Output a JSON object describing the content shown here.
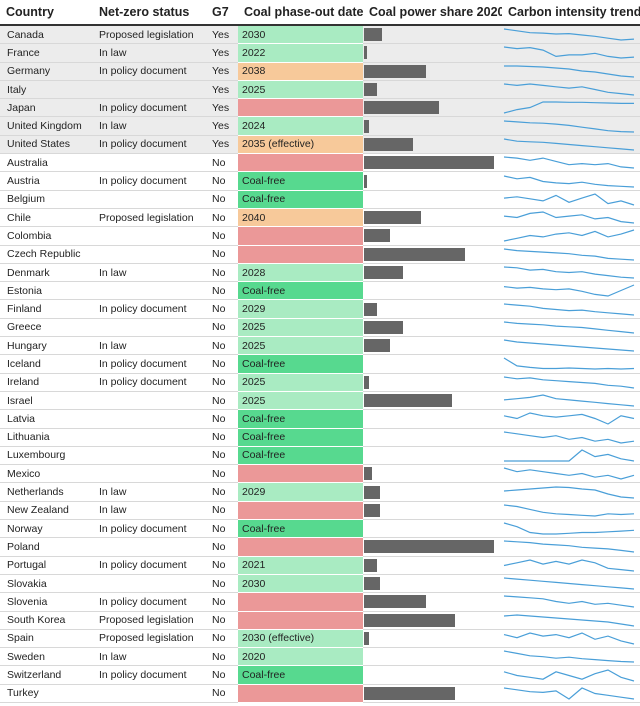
{
  "chart_data": {
    "type": "table",
    "columns": [
      "Country",
      "Net-zero status",
      "G7",
      "Coal phase-out date",
      "Coal power share 2020",
      "Carbon intensity trend"
    ],
    "colors": {
      "coal_free": "#57d98f",
      "phase_date": "#a9ebc2",
      "phase_date_late": "#f7c99a",
      "no_commitment": "#eb9898",
      "share_bar": "#666666",
      "trend_line": "#4a9fd8",
      "g7_row_background": "#ececec"
    },
    "share_max": 0.5,
    "rows": [
      {
        "country": "Canada",
        "status": "Proposed legislation",
        "g7": "Yes",
        "phase": "2030",
        "phase_class": "date",
        "share": 0.07,
        "trend": [
          520,
          500,
          480,
          475,
          465,
          470,
          455,
          440,
          420,
          400,
          410
        ]
      },
      {
        "country": "France",
        "status": "In law",
        "g7": "Yes",
        "phase": "2022",
        "phase_class": "date",
        "share": 0.01,
        "trend": [
          120,
          115,
          118,
          110,
          90,
          95,
          95,
          100,
          90,
          85,
          88
        ]
      },
      {
        "country": "Germany",
        "status": "In policy document",
        "g7": "Yes",
        "phase": "2038",
        "phase_class": "late",
        "share": 0.24,
        "trend": [
          530,
          530,
          525,
          520,
          510,
          500,
          480,
          470,
          450,
          430,
          420
        ]
      },
      {
        "country": "Italy",
        "status": "",
        "g7": "Yes",
        "phase": "2025",
        "phase_class": "date",
        "share": 0.05,
        "trend": [
          440,
          430,
          440,
          430,
          420,
          410,
          420,
          400,
          380,
          370,
          360
        ]
      },
      {
        "country": "Japan",
        "status": "In policy document",
        "g7": "Yes",
        "phase": "",
        "phase_class": "none",
        "share": 0.29,
        "trend": [
          400,
          450,
          480,
          560,
          560,
          555,
          555,
          550,
          545,
          540,
          540
        ]
      },
      {
        "country": "United Kingdom",
        "status": "In law",
        "g7": "Yes",
        "phase": "2024",
        "phase_class": "date",
        "share": 0.02,
        "trend": [
          560,
          540,
          520,
          510,
          490,
          460,
          420,
          380,
          340,
          320,
          310
        ]
      },
      {
        "country": "United States",
        "status": "In policy document",
        "g7": "Yes",
        "phase": "2035 (effective)",
        "phase_class": "late",
        "share": 0.19,
        "trend": [
          570,
          550,
          545,
          540,
          530,
          520,
          510,
          500,
          490,
          480,
          470
        ]
      },
      {
        "country": "Australia",
        "status": "",
        "g7": "No",
        "phase": "",
        "phase_class": "none",
        "share": 0.54,
        "trend": [
          830,
          820,
          800,
          820,
          790,
          760,
          770,
          760,
          770,
          740,
          730
        ]
      },
      {
        "country": "Austria",
        "status": "In policy document",
        "g7": "No",
        "phase": "Coal-free",
        "phase_class": "free",
        "share": 0.01,
        "trend": [
          200,
          180,
          190,
          160,
          150,
          145,
          155,
          140,
          130,
          125,
          120
        ]
      },
      {
        "country": "Belgium",
        "status": "",
        "g7": "No",
        "phase": "Coal-free",
        "phase_class": "free",
        "share": 0.0,
        "trend": [
          220,
          230,
          215,
          200,
          240,
          190,
          220,
          250,
          180,
          200,
          170
        ]
      },
      {
        "country": "Chile",
        "status": "Proposed legislation",
        "g7": "No",
        "phase": "2040",
        "phase_class": "late",
        "share": 0.22,
        "trend": [
          450,
          440,
          470,
          480,
          440,
          450,
          460,
          430,
          440,
          410,
          400
        ]
      },
      {
        "country": "Colombia",
        "status": "",
        "g7": "No",
        "phase": "",
        "phase_class": "none",
        "share": 0.1,
        "trend": [
          150,
          160,
          170,
          165,
          175,
          180,
          170,
          185,
          165,
          175,
          190
        ]
      },
      {
        "country": "Czech Republic",
        "status": "",
        "g7": "No",
        "phase": "",
        "phase_class": "none",
        "share": 0.39,
        "trend": [
          600,
          590,
          585,
          580,
          575,
          570,
          560,
          555,
          540,
          535,
          530
        ]
      },
      {
        "country": "Denmark",
        "status": "In law",
        "g7": "No",
        "phase": "2028",
        "phase_class": "date",
        "share": 0.15,
        "trend": [
          360,
          350,
          320,
          330,
          300,
          290,
          300,
          270,
          250,
          230,
          220
        ]
      },
      {
        "country": "Estonia",
        "status": "",
        "g7": "No",
        "phase": "Coal-free",
        "phase_class": "free",
        "share": 0.0,
        "trend": [
          900,
          880,
          890,
          870,
          860,
          870,
          840,
          800,
          780,
          850,
          920
        ]
      },
      {
        "country": "Finland",
        "status": "In policy document",
        "g7": "No",
        "phase": "2029",
        "phase_class": "date",
        "share": 0.05,
        "trend": [
          200,
          190,
          180,
          160,
          150,
          140,
          145,
          130,
          120,
          110,
          100
        ]
      },
      {
        "country": "Greece",
        "status": "",
        "g7": "No",
        "phase": "2025",
        "phase_class": "date",
        "share": 0.15,
        "trend": [
          720,
          700,
          690,
          680,
          660,
          650,
          640,
          620,
          600,
          580,
          560
        ]
      },
      {
        "country": "Hungary",
        "status": "In law",
        "g7": "No",
        "phase": "2025",
        "phase_class": "date",
        "share": 0.1,
        "trend": [
          300,
          290,
          285,
          280,
          275,
          270,
          265,
          260,
          255,
          250,
          245
        ]
      },
      {
        "country": "Iceland",
        "status": "In policy document",
        "g7": "No",
        "phase": "Coal-free",
        "phase_class": "free",
        "share": 0.0,
        "trend": [
          30,
          15,
          12,
          10,
          10,
          11,
          10,
          9,
          10,
          9,
          10
        ]
      },
      {
        "country": "Ireland",
        "status": "In policy document",
        "g7": "No",
        "phase": "2025",
        "phase_class": "date",
        "share": 0.02,
        "trend": [
          500,
          480,
          490,
          470,
          460,
          450,
          440,
          430,
          410,
          400,
          380
        ]
      },
      {
        "country": "Israel",
        "status": "",
        "g7": "No",
        "phase": "2025",
        "phase_class": "date",
        "share": 0.34,
        "trend": [
          600,
          610,
          620,
          640,
          610,
          600,
          590,
          580,
          570,
          560,
          550
        ]
      },
      {
        "country": "Latvia",
        "status": "",
        "g7": "No",
        "phase": "Coal-free",
        "phase_class": "free",
        "share": 0.0,
        "trend": [
          150,
          140,
          160,
          150,
          145,
          150,
          155,
          140,
          120,
          150,
          140
        ]
      },
      {
        "country": "Lithuania",
        "status": "",
        "g7": "No",
        "phase": "Coal-free",
        "phase_class": "free",
        "share": 0.0,
        "trend": [
          200,
          190,
          180,
          170,
          180,
          160,
          170,
          150,
          160,
          140,
          150
        ]
      },
      {
        "country": "Luxembourg",
        "status": "",
        "g7": "No",
        "phase": "Coal-free",
        "phase_class": "free",
        "share": 0.0,
        "trend": [
          100,
          100,
          100,
          100,
          100,
          100,
          150,
          120,
          130,
          110,
          100
        ]
      },
      {
        "country": "Mexico",
        "status": "",
        "g7": "No",
        "phase": "",
        "phase_class": "none",
        "share": 0.03,
        "trend": [
          450,
          440,
          445,
          440,
          435,
          430,
          435,
          425,
          430,
          420,
          430
        ]
      },
      {
        "country": "Netherlands",
        "status": "In law",
        "g7": "No",
        "phase": "2029",
        "phase_class": "date",
        "share": 0.06,
        "trend": [
          460,
          470,
          480,
          490,
          500,
          495,
          480,
          470,
          430,
          400,
          390
        ]
      },
      {
        "country": "New Zealand",
        "status": "In law",
        "g7": "No",
        "phase": "",
        "phase_class": "none",
        "share": 0.06,
        "trend": [
          180,
          170,
          150,
          130,
          120,
          115,
          110,
          105,
          120,
          115,
          120
        ]
      },
      {
        "country": "Norway",
        "status": "In policy document",
        "g7": "No",
        "phase": "Coal-free",
        "phase_class": "free",
        "share": 0.0,
        "trend": [
          25,
          20,
          12,
          10,
          10,
          11,
          12,
          12,
          13,
          14,
          15
        ]
      },
      {
        "country": "Poland",
        "status": "",
        "g7": "No",
        "phase": "",
        "phase_class": "none",
        "share": 0.7,
        "trend": [
          820,
          815,
          810,
          800,
          795,
          790,
          780,
          775,
          770,
          760,
          750
        ]
      },
      {
        "country": "Portugal",
        "status": "In policy document",
        "g7": "No",
        "phase": "2021",
        "phase_class": "date",
        "share": 0.05,
        "trend": [
          280,
          300,
          320,
          290,
          310,
          290,
          320,
          300,
          260,
          250,
          240
        ]
      },
      {
        "country": "Slovakia",
        "status": "",
        "g7": "No",
        "phase": "2030",
        "phase_class": "date",
        "share": 0.06,
        "trend": [
          200,
          195,
          190,
          185,
          180,
          175,
          170,
          165,
          160,
          155,
          150
        ]
      },
      {
        "country": "Slovenia",
        "status": "In policy document",
        "g7": "No",
        "phase": "",
        "phase_class": "none",
        "share": 0.24,
        "trend": [
          330,
          325,
          320,
          315,
          300,
          290,
          300,
          285,
          290,
          280,
          270
        ]
      },
      {
        "country": "South Korea",
        "status": "Proposed legislation",
        "g7": "No",
        "phase": "",
        "phase_class": "none",
        "share": 0.35,
        "trend": [
          520,
          525,
          520,
          515,
          510,
          505,
          500,
          495,
          490,
          480,
          470
        ]
      },
      {
        "country": "Spain",
        "status": "Proposed legislation",
        "g7": "No",
        "phase": "2030 (effective)",
        "phase_class": "date",
        "share": 0.02,
        "trend": [
          300,
          280,
          310,
          290,
          300,
          280,
          310,
          270,
          290,
          260,
          240
        ]
      },
      {
        "country": "Sweden",
        "status": "In law",
        "g7": "No",
        "phase": "2020",
        "phase_class": "date",
        "share": 0.0,
        "trend": [
          40,
          35,
          30,
          28,
          25,
          27,
          24,
          22,
          20,
          18,
          17
        ]
      },
      {
        "country": "Switzerland",
        "status": "In policy document",
        "g7": "No",
        "phase": "Coal-free",
        "phase_class": "free",
        "share": 0.0,
        "trend": [
          30,
          28,
          27,
          26,
          30,
          28,
          26,
          29,
          31,
          27,
          25
        ]
      },
      {
        "country": "Turkey",
        "status": "",
        "g7": "No",
        "phase": "",
        "phase_class": "none",
        "share": 0.35,
        "trend": [
          470,
          465,
          460,
          458,
          462,
          440,
          470,
          455,
          450,
          445,
          440
        ]
      }
    ]
  }
}
